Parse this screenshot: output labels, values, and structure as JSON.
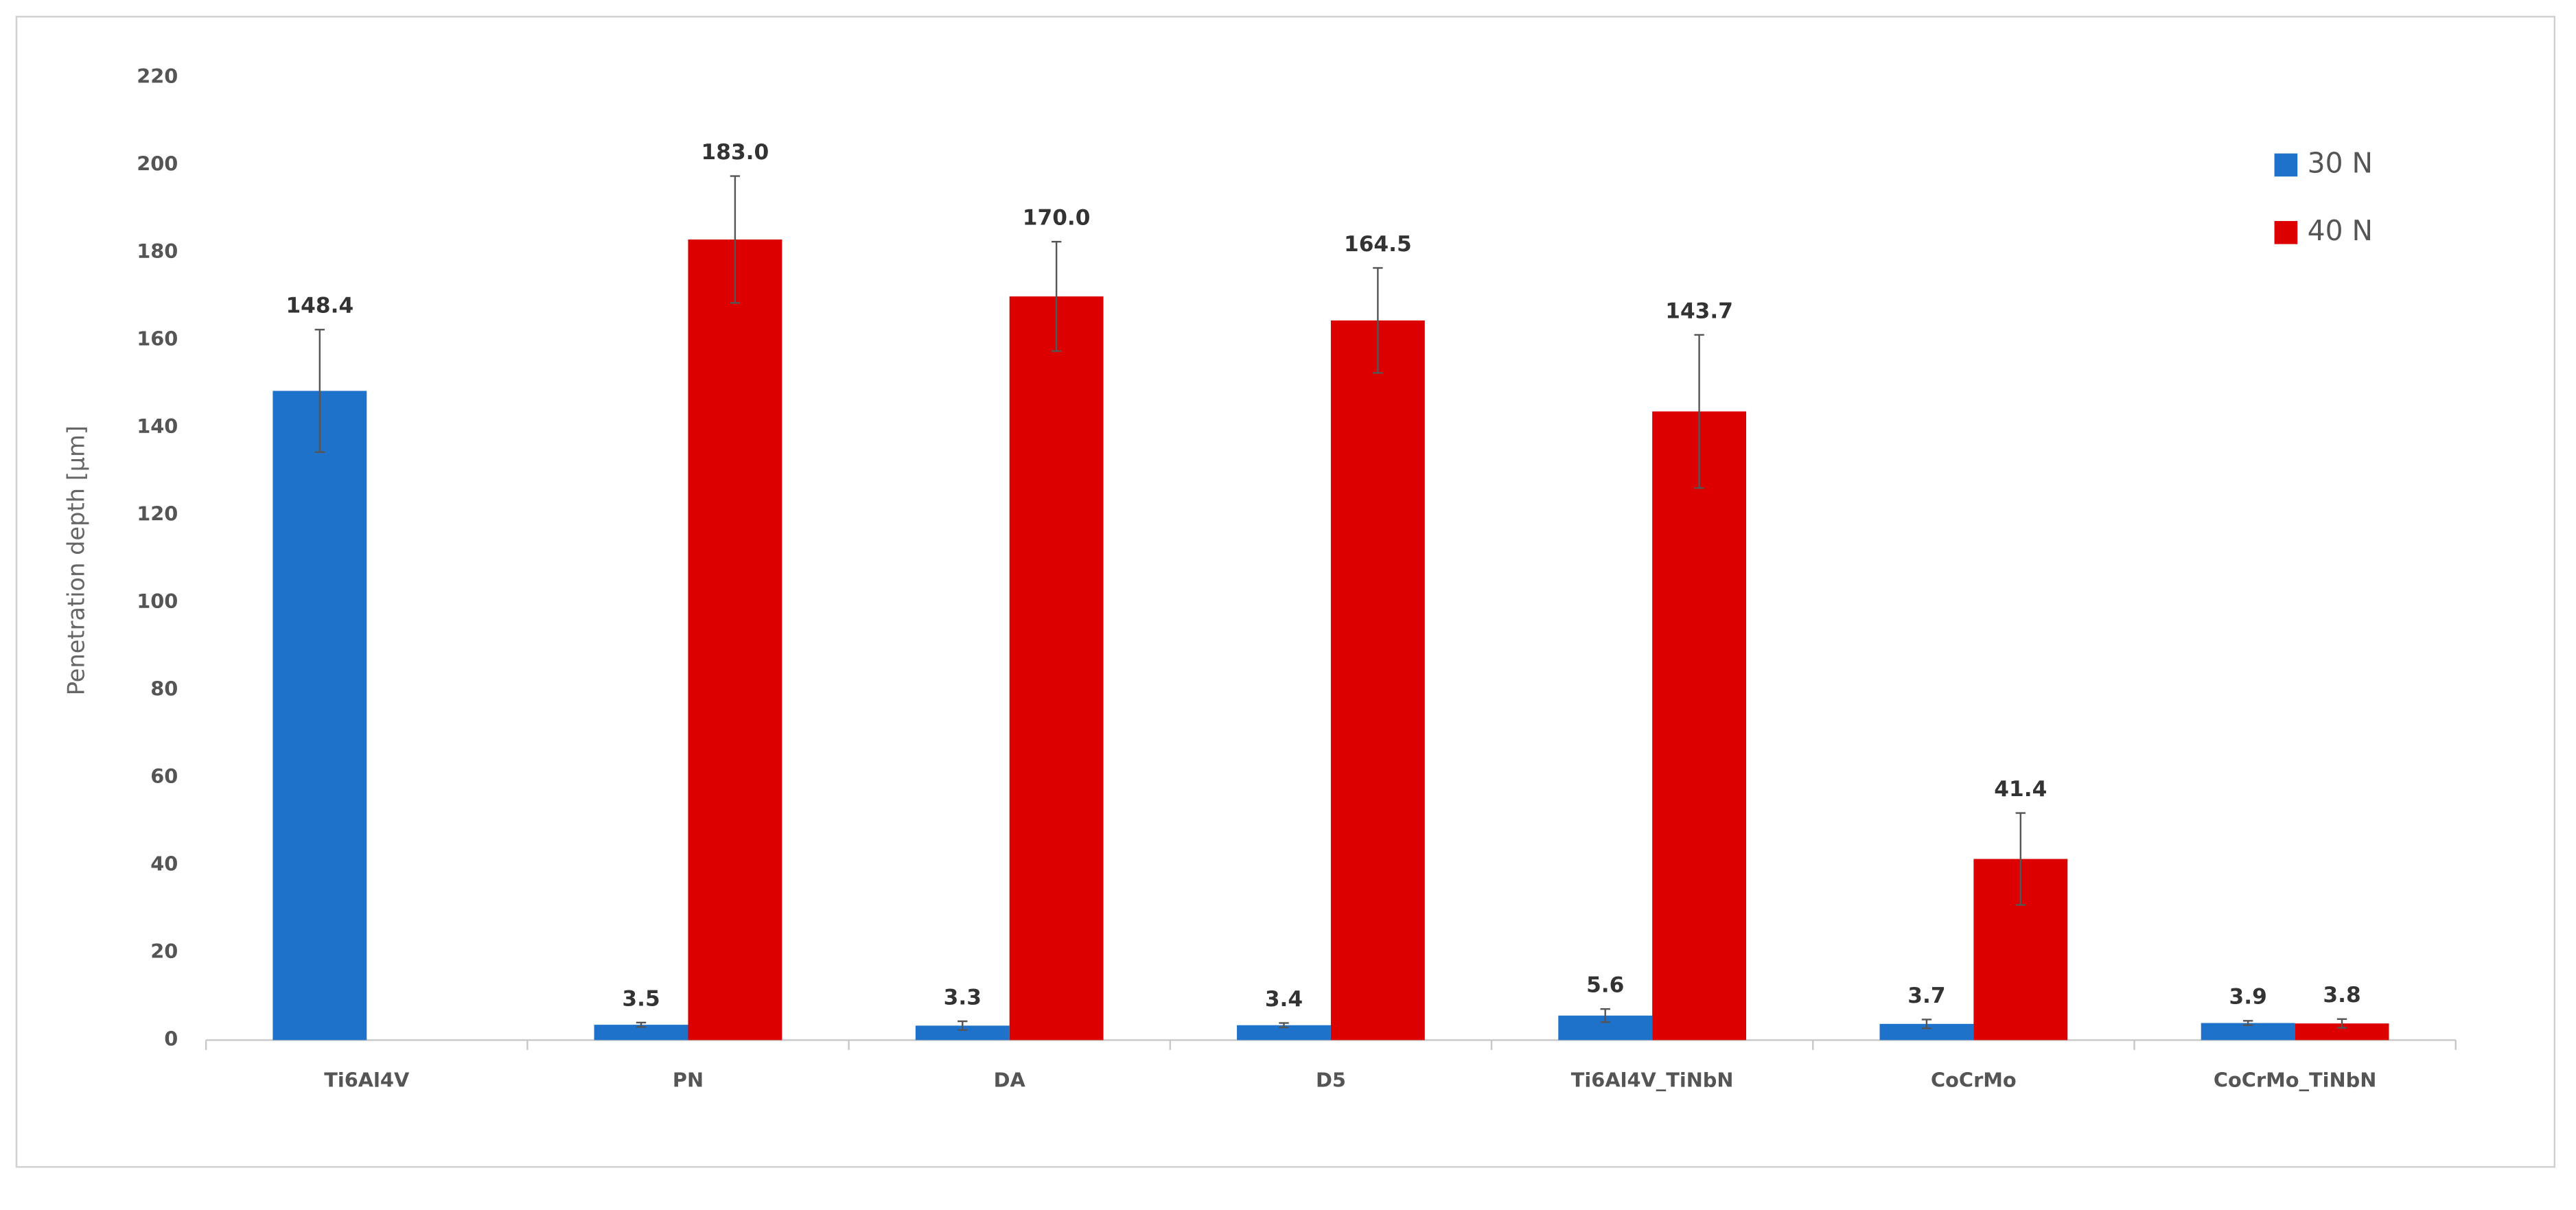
{
  "chart_data": {
    "type": "bar",
    "y_label": "Penetration depth [µm]",
    "categories": [
      "Ti6Al4V",
      "PN",
      "DA",
      "D5",
      "Ti6Al4V_TiNbN",
      "CoCrMo",
      "CoCrMo_TiNbN"
    ],
    "series": [
      {
        "name": "30 N",
        "color": "#1f72c9",
        "values": [
          148.4,
          3.5,
          3.3,
          3.4,
          5.6,
          3.7,
          3.9
        ],
        "value_labels": [
          "148.4",
          "3.5",
          "3.3",
          "3.4",
          "5.6",
          "3.7",
          "3.9"
        ],
        "errors": [
          14,
          0.5,
          1,
          0.5,
          1.5,
          1,
          0.5
        ]
      },
      {
        "name": "40 N",
        "color": "#dc0000",
        "values": [
          null,
          183,
          170,
          164.5,
          143.7,
          41.4,
          3.8
        ],
        "value_labels": [
          null,
          "183.0",
          "170.0",
          "164.5",
          "143.7",
          "41.4",
          "3.8"
        ],
        "errors": [
          null,
          14.5,
          12.5,
          12,
          17.5,
          10.5,
          1
        ]
      }
    ],
    "ylim": [
      0,
      220
    ],
    "yticks": [
      0,
      20,
      40,
      60,
      80,
      100,
      120,
      140,
      160,
      180,
      200,
      220
    ],
    "legend": "top-right"
  }
}
